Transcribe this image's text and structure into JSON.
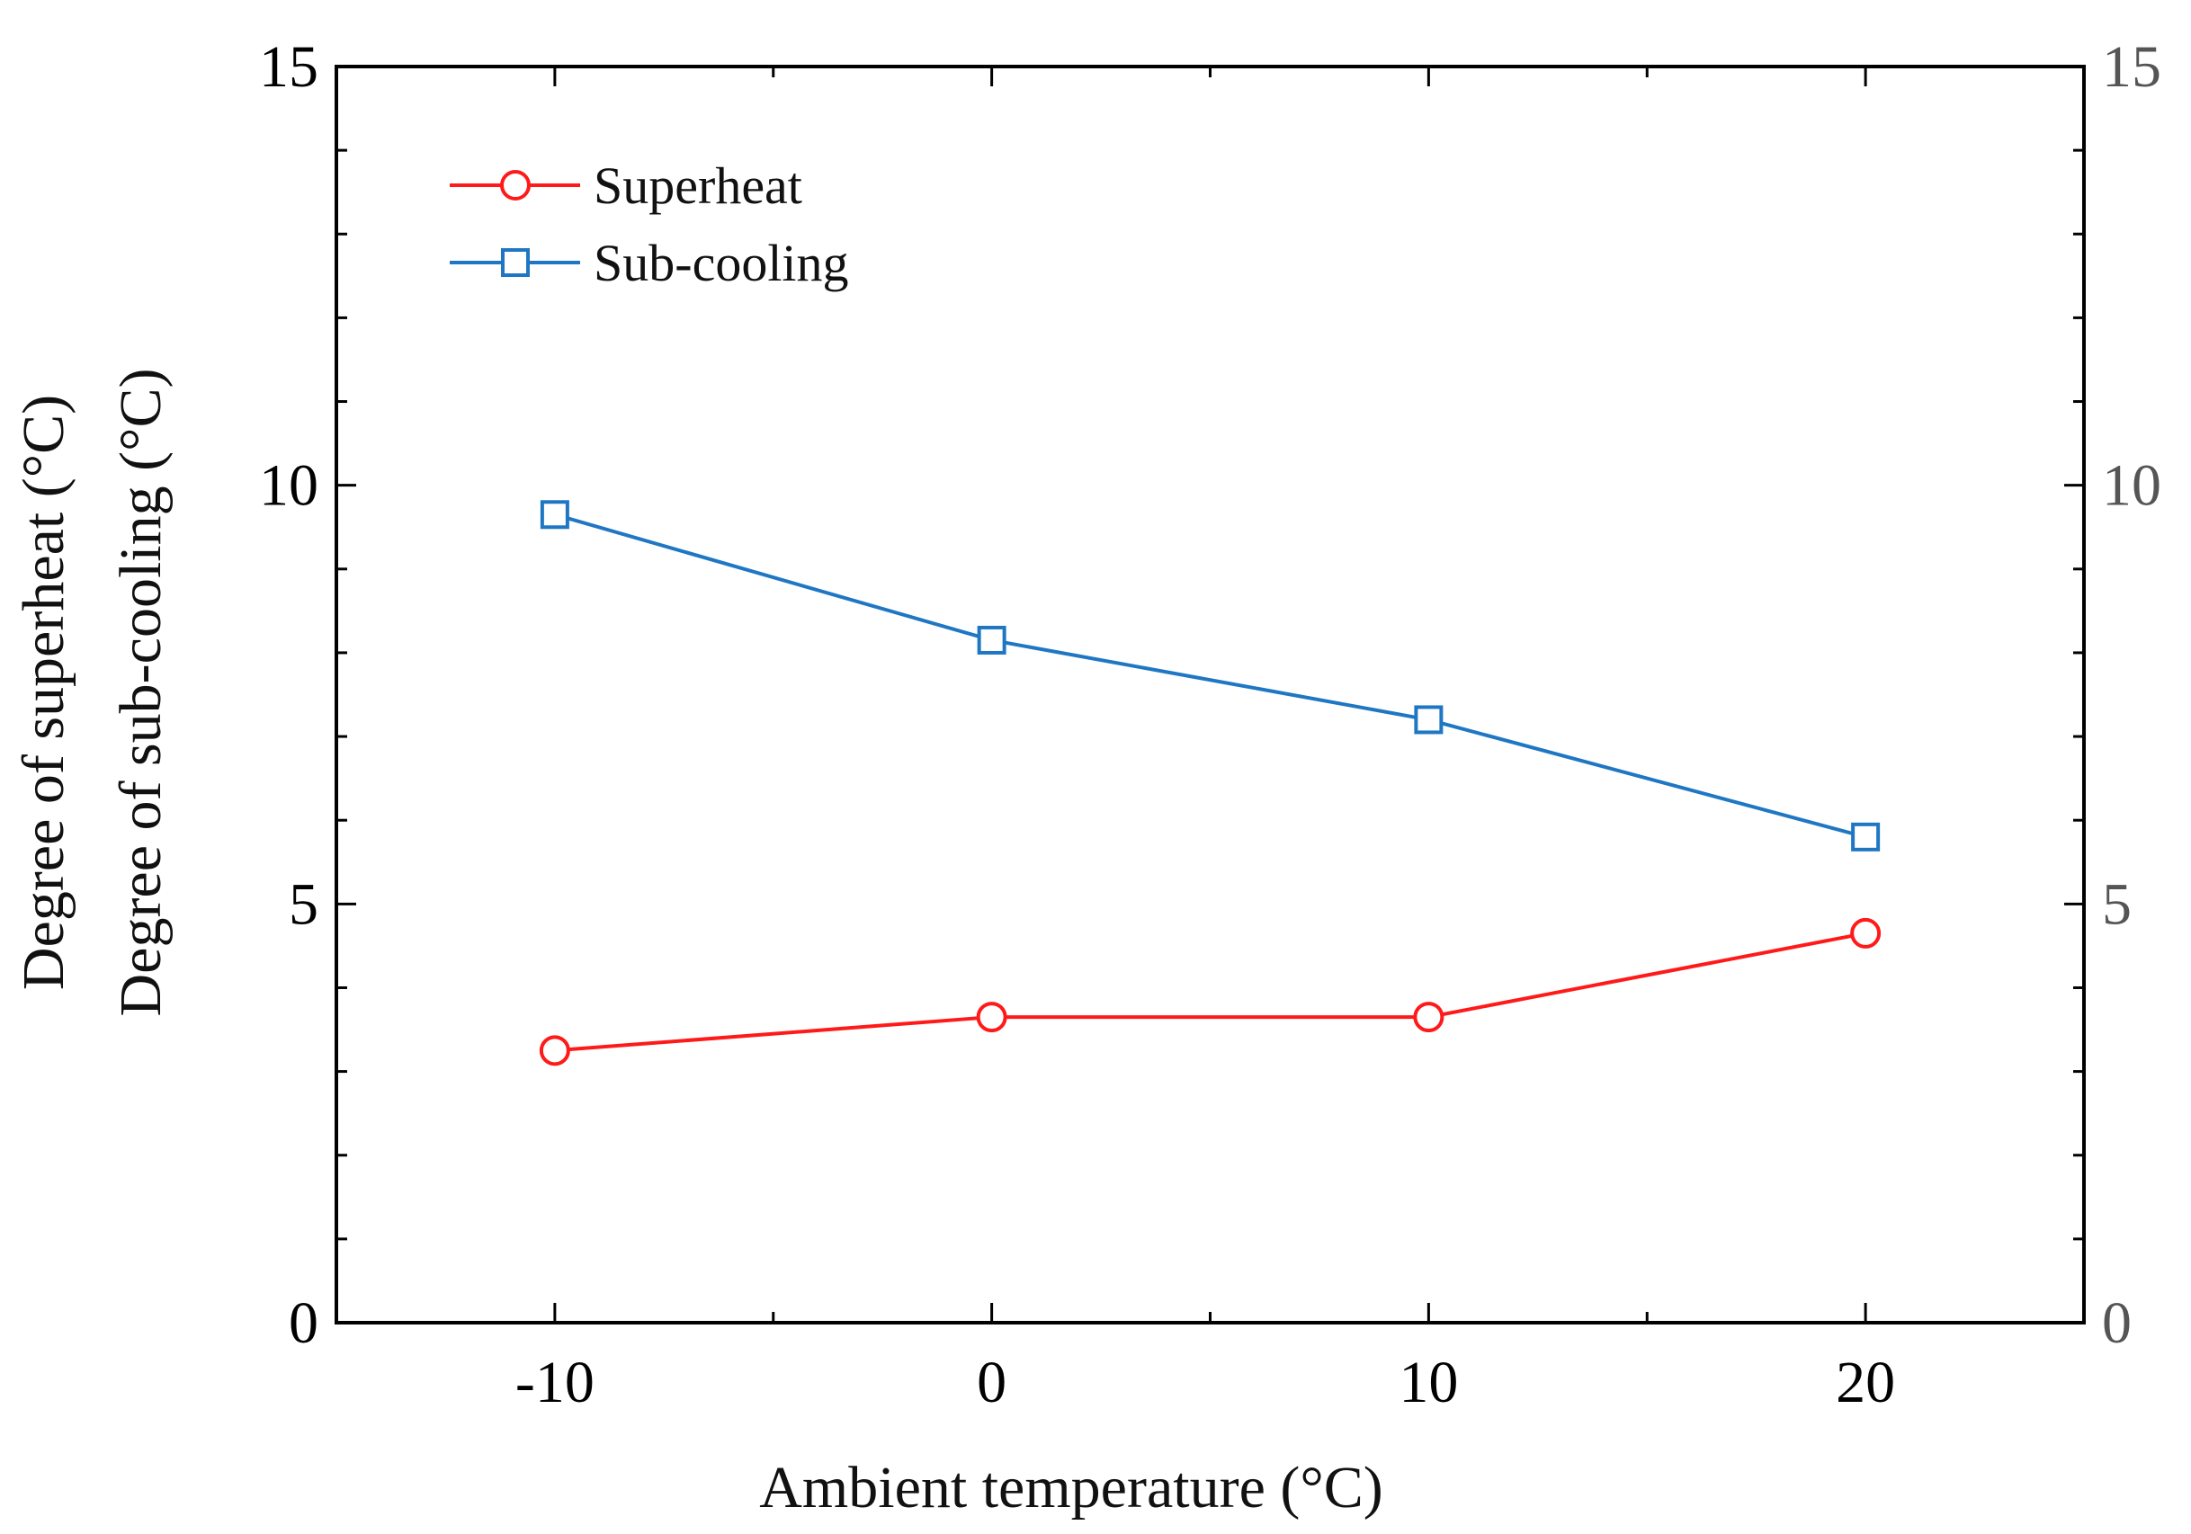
{
  "chart_data": {
    "type": "line",
    "xlabel": "Ambient temperature (°C)",
    "ylabel_lines": [
      "Degree of superheat (°C)",
      "Degree of sub-cooling (°C)"
    ],
    "xlim": [
      -15,
      25
    ],
    "ylim": [
      0,
      15
    ],
    "x_ticks": [
      -10,
      0,
      10,
      20
    ],
    "x_tick_labels": [
      "-10",
      "0",
      "10",
      "20"
    ],
    "y_ticks": [
      0,
      5,
      10,
      15
    ],
    "y_tick_labels": [
      "0",
      "5",
      "10",
      "15"
    ],
    "y_minor_step": 1,
    "x_minor_step": 5,
    "right_axis_ticks": [
      0,
      5,
      10,
      15
    ],
    "right_axis_labels": [
      "0",
      "5",
      "10",
      "15"
    ],
    "x": [
      -10,
      0,
      10,
      20
    ],
    "series": [
      {
        "name": "Superheat",
        "values": [
          3.25,
          3.65,
          3.65,
          4.65
        ],
        "color": "#ff1a1a",
        "marker": "circle"
      },
      {
        "name": "Sub-cooling",
        "values": [
          9.65,
          8.15,
          7.2,
          5.8
        ],
        "color": "#1f77c4",
        "marker": "square"
      }
    ],
    "legend": "top-left",
    "grid": false
  }
}
